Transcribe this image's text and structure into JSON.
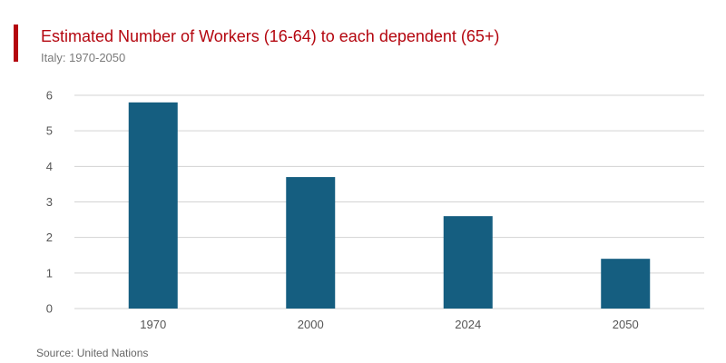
{
  "header": {
    "title": "Estimated Number of Workers (16-64) to each dependent (65+)",
    "subtitle": "Italy: 1970-2050"
  },
  "footer": {
    "source": "Source: United Nations"
  },
  "colors": {
    "accent": "#b4060f",
    "bar": "#155e80",
    "grid": "#d3d3d3"
  },
  "chart_data": {
    "type": "bar",
    "title": "Estimated Number of Workers (16-64) to each dependent (65+)",
    "subtitle": "Italy: 1970-2050",
    "categories": [
      "1970",
      "2000",
      "2024",
      "2050"
    ],
    "values": [
      5.8,
      3.7,
      2.6,
      1.4
    ],
    "ylim": [
      0,
      6
    ],
    "yticks": [
      0,
      1,
      2,
      3,
      4,
      5,
      6
    ],
    "grid": true,
    "legend": "none"
  }
}
